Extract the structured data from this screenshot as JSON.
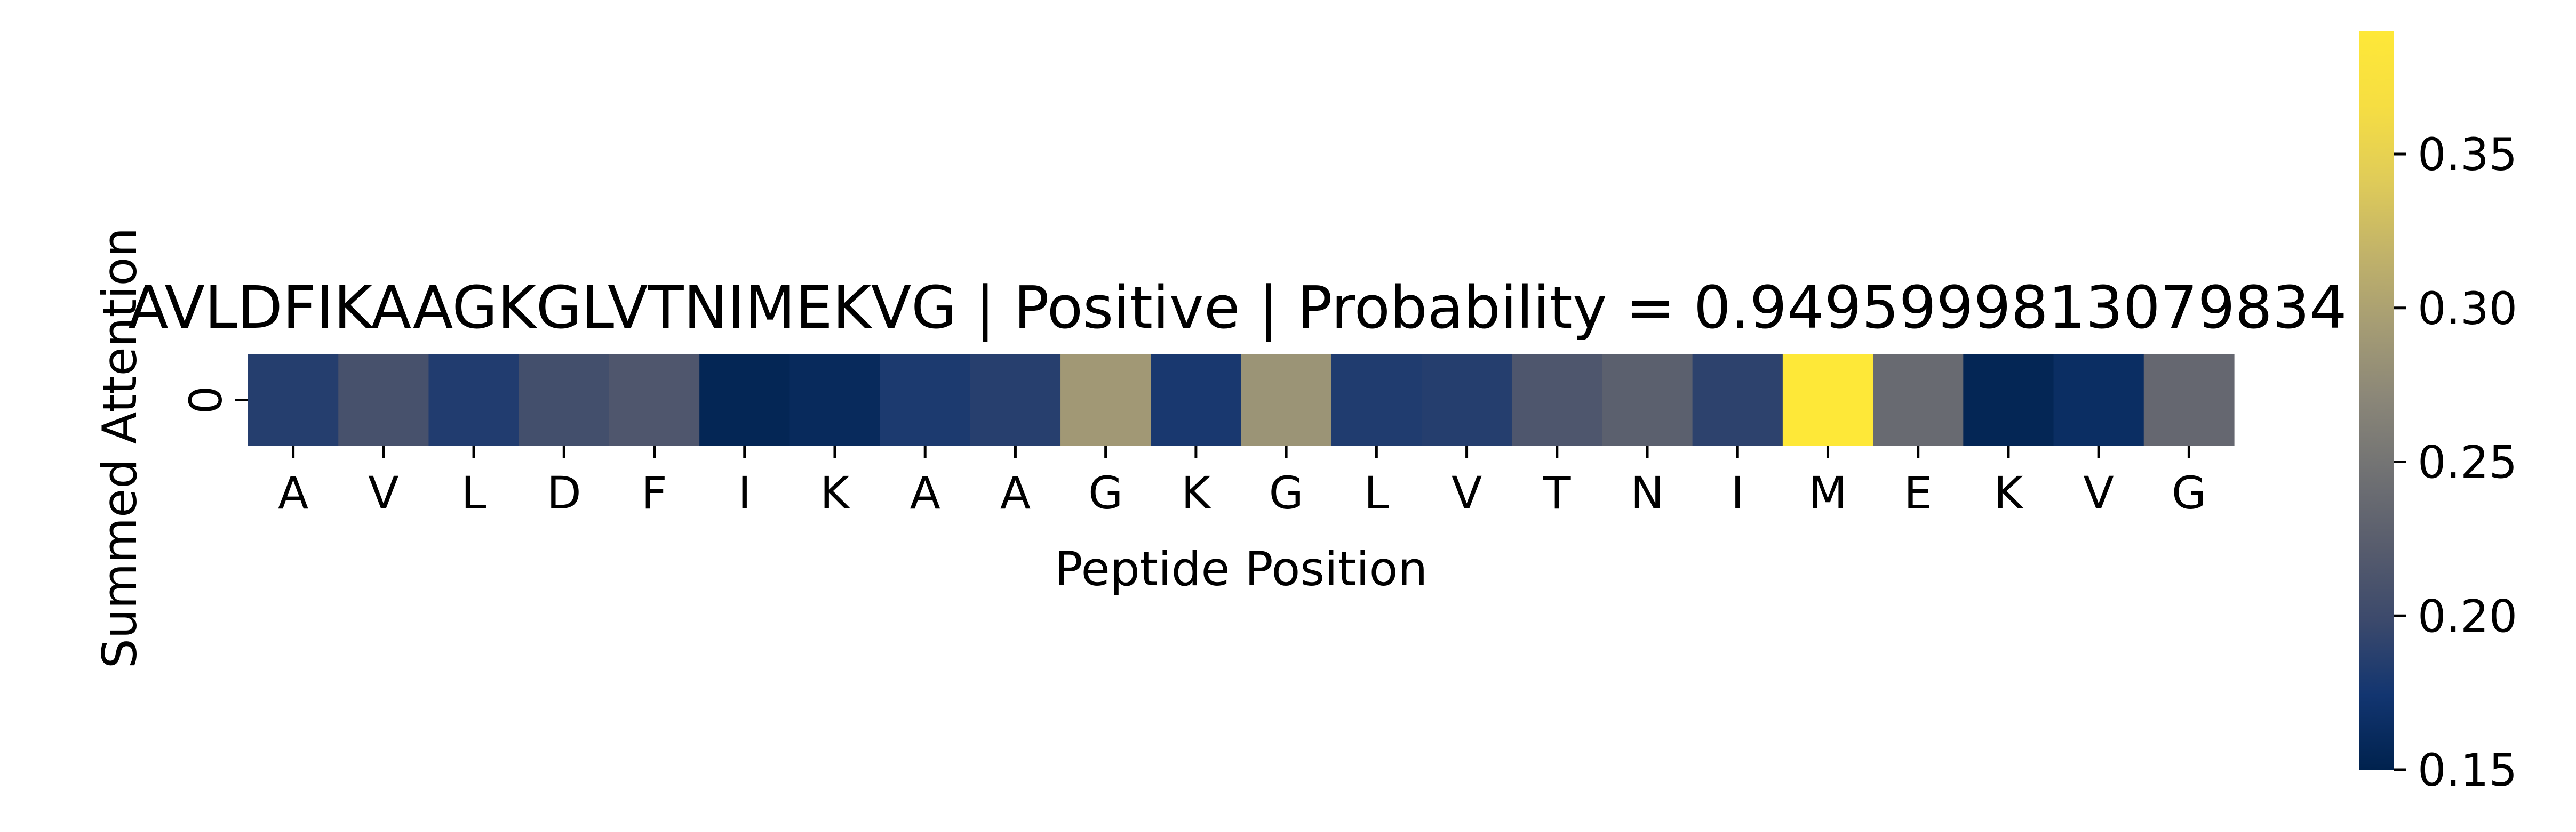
{
  "chart_data": {
    "type": "heatmap",
    "title": "AVLDFIKAAGKGLVTNIMEKVG | Positive | Probability = 0.9495999813079834",
    "xlabel": "Peptide Position",
    "ylabel": "Summed Attention",
    "x_categories": [
      "A",
      "V",
      "L",
      "D",
      "F",
      "I",
      "K",
      "A",
      "A",
      "G",
      "K",
      "G",
      "L",
      "V",
      "T",
      "N",
      "I",
      "M",
      "E",
      "K",
      "V",
      "G"
    ],
    "y_categories": [
      "0"
    ],
    "values": [
      [
        0.185,
        0.208,
        0.183,
        0.205,
        0.215,
        0.155,
        0.16,
        0.18,
        0.186,
        0.29,
        0.178,
        0.285,
        0.182,
        0.185,
        0.214,
        0.226,
        0.19,
        0.39,
        0.238,
        0.155,
        0.165,
        0.235
      ]
    ],
    "colorbar": {
      "colormap": "cividis",
      "range": [
        0.15,
        0.39
      ],
      "ticks": [
        0.15,
        0.2,
        0.25,
        0.3,
        0.35
      ],
      "tick_labels": [
        "0.15",
        "0.20",
        "0.25",
        "0.30",
        "0.35"
      ]
    },
    "grid": false,
    "legend": "none"
  }
}
